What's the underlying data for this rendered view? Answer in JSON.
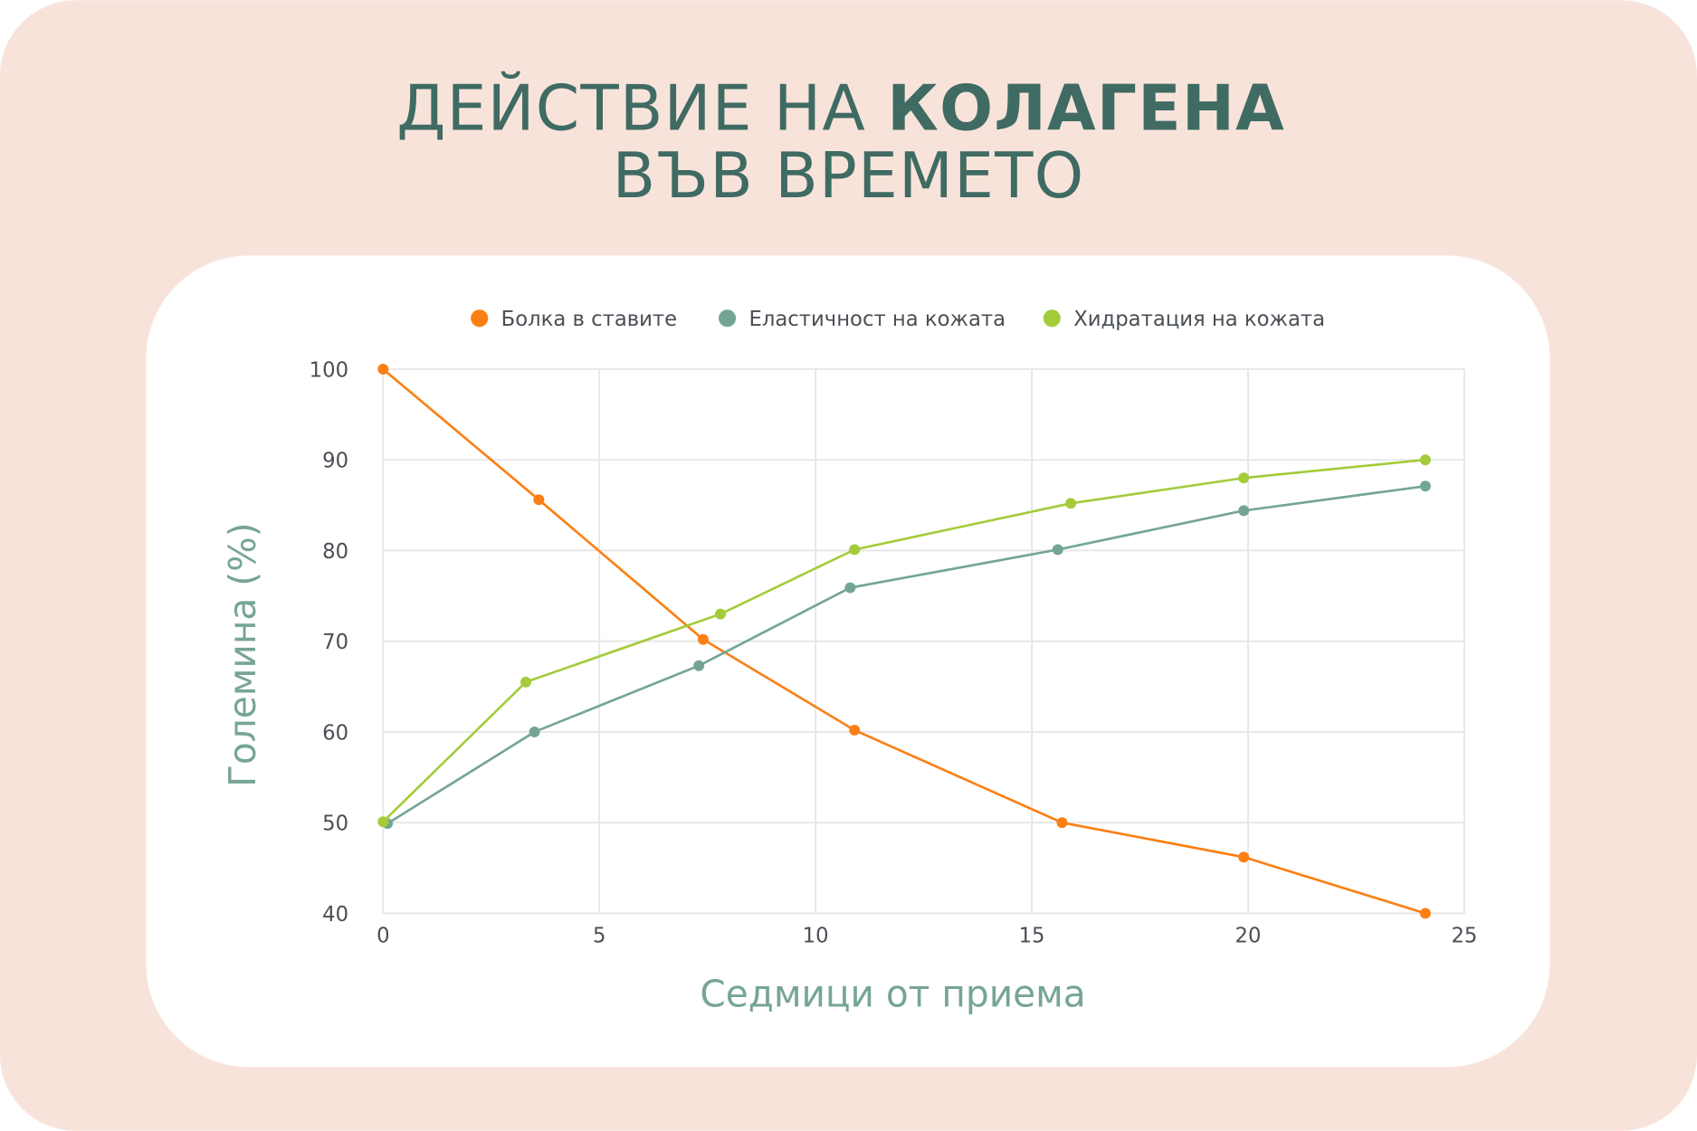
{
  "title": {
    "line1_regular": "ДЕЙСТВИЕ НА ",
    "line1_bold": "КОЛАГЕНА",
    "line2": "ВЪВ ВРЕМЕТО"
  },
  "chart_data": {
    "type": "line",
    "xlabel": "Седмици от приема",
    "ylabel": "Големина (%)",
    "xlim": [
      0,
      25
    ],
    "ylim": [
      40,
      100
    ],
    "xticks": [
      0,
      5,
      10,
      15,
      20,
      25
    ],
    "yticks": [
      40,
      50,
      60,
      70,
      80,
      90,
      100
    ],
    "grid": true,
    "legend_position": "top-center",
    "series": [
      {
        "name": "Болка в ставите",
        "color": "#fb7f13",
        "x": [
          0,
          3.6,
          7.4,
          10.9,
          15.7,
          19.9,
          24.1
        ],
        "y": [
          100,
          85.6,
          70.2,
          60.2,
          50,
          46.2,
          40
        ]
      },
      {
        "name": "Еластичност на кожата",
        "color": "#74a594",
        "x": [
          0.1,
          3.5,
          7.3,
          10.8,
          15.6,
          19.9,
          24.1
        ],
        "y": [
          49.9,
          60,
          67.3,
          75.9,
          80.1,
          84.4,
          87.1
        ]
      },
      {
        "name": "Хидратация на кожата",
        "color": "#a4cb3a",
        "x": [
          0,
          3.3,
          7.8,
          10.9,
          15.9,
          19.9,
          24.1
        ],
        "y": [
          50.1,
          65.5,
          73,
          80.1,
          85.2,
          88,
          90
        ]
      }
    ]
  }
}
